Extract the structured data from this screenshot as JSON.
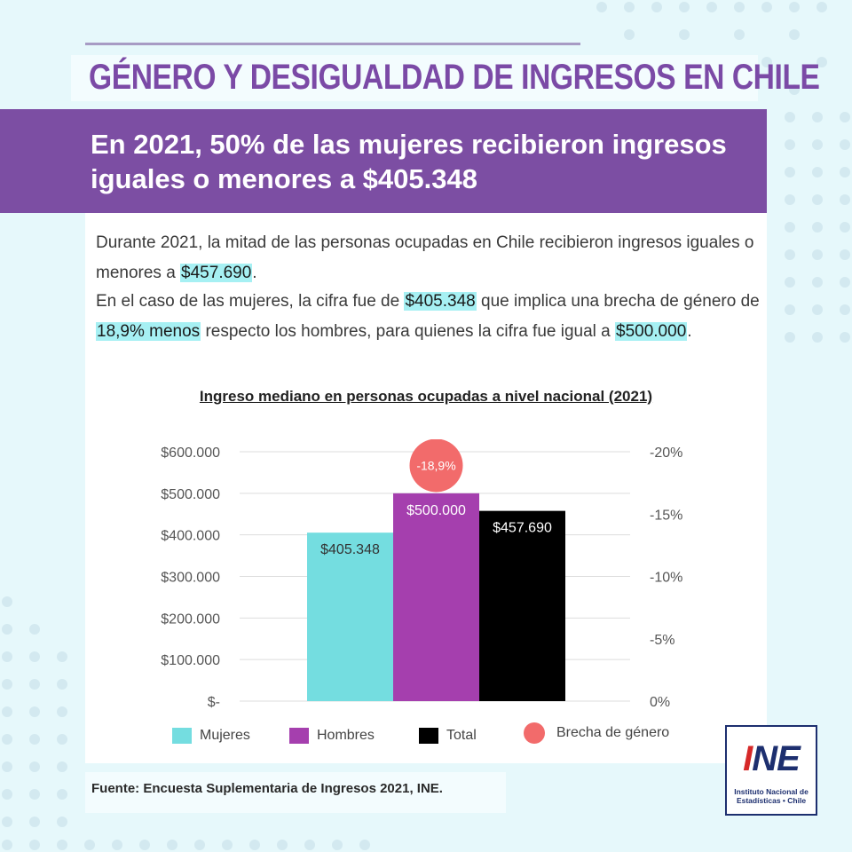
{
  "header": {
    "title": "GÉNERO Y DESIGUALDAD DE INGRESOS EN CHILE",
    "banner": "En 2021, 50% de las mujeres recibieron ingresos iguales o menores a $405.348"
  },
  "text": {
    "p1_a": "Durante 2021,  la mitad de las personas ocupadas en Chile recibieron ingresos iguales o menores a ",
    "p1_hl": "$457.690",
    "p1_b": ".",
    "p2_a": "En el caso de las mujeres, la cifra fue de ",
    "p2_hl1": "$405.348",
    "p2_b": " que implica  una brecha de género de ",
    "p2_hl2": "18,9% menos",
    "p2_c": " respecto los hombres, para quienes la cifra fue igual a ",
    "p2_hl3": "$500.000",
    "p2_d": "."
  },
  "chart_data": {
    "type": "bar",
    "title": "Ingreso mediano en personas ocupadas a nivel nacional (2021)",
    "categories": [
      "Mujeres",
      "Hombres",
      "Total"
    ],
    "values": [
      405348,
      500000,
      457690
    ],
    "value_labels": [
      "$405.348",
      "$500.000",
      "$457.690"
    ],
    "colors": [
      "#74dde0",
      "#a53fae",
      "#000000"
    ],
    "ylim": [
      0,
      600000
    ],
    "yticks": [
      "$-",
      "$100.000",
      "$200.000",
      "$300.000",
      "$400.000",
      "$500.000",
      "$600.000"
    ],
    "y2lim": [
      0,
      -20
    ],
    "y2ticks": [
      "0%",
      "-5%",
      "-10%",
      "-15%",
      "-20%"
    ],
    "gap": {
      "name": "Brecha de género",
      "value": -18.9,
      "label": "-18,9%",
      "color": "#f26b6b"
    },
    "legend": [
      "Mujeres",
      "Hombres",
      "Total",
      "Brecha de género"
    ],
    "legend_position": "bottom",
    "grid": true
  },
  "footer": {
    "source": "Fuente: Encuesta Suplementaria de Ingresos 2021, INE."
  },
  "logo": {
    "mark": "INE",
    "line1": "Instituto Nacional de",
    "line2": "Estadísticas • Chile"
  }
}
